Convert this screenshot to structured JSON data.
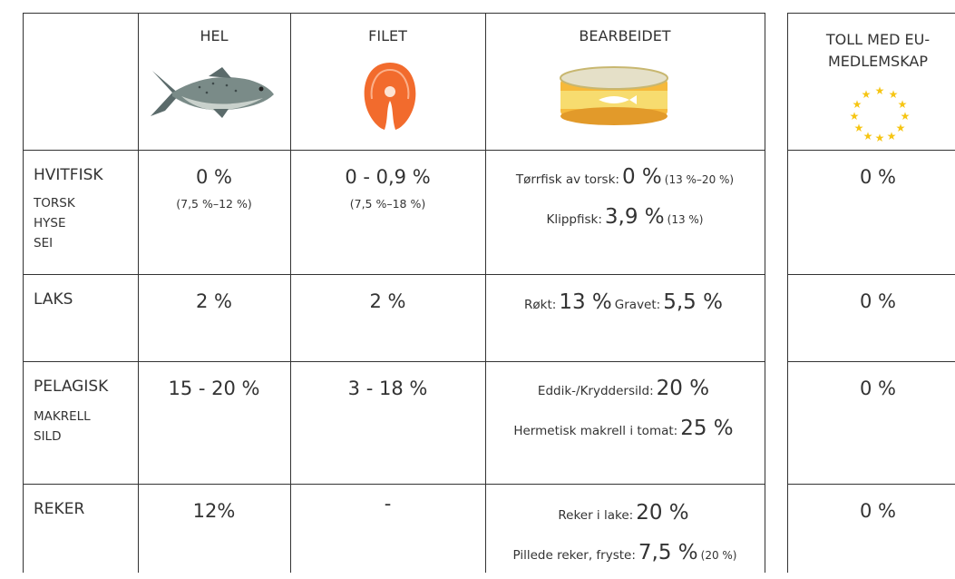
{
  "header": {
    "columns": [
      "HEL",
      "FILET",
      "BEARBEIDET"
    ],
    "eu": [
      "TOLL MED EU-",
      "MEDLEMSKAP"
    ]
  },
  "rows": [
    {
      "name": "HVITFISK",
      "species": [
        "TORSK",
        "HYSE",
        "SEI"
      ],
      "hel": {
        "value": "0 %",
        "note": "(7,5 %–12 %)"
      },
      "filet": {
        "value": "0 - 0,9 %",
        "note": "(7,5 %–18 %)"
      },
      "bearbeidet": [
        [
          {
            "label": "Tørrfisk av torsk:",
            "value": "0 %",
            "note": "(13 %–20 %)"
          }
        ],
        [
          {
            "label": "Klippfisk:",
            "value": "3,9 %",
            "note": "(13 %)"
          }
        ]
      ],
      "eu": "0 %"
    },
    {
      "name": "LAKS",
      "hel": {
        "value": "2 %"
      },
      "filet": {
        "value": "2 %"
      },
      "bearbeidet": [
        [
          {
            "label": "Røkt:",
            "value": "13 %"
          },
          {
            "label": "Gravet:",
            "value": "5,5 %"
          }
        ]
      ],
      "eu": "0 %"
    },
    {
      "name": "PELAGISK",
      "species": [
        "MAKRELL",
        "SILD"
      ],
      "hel": {
        "value": "15 - 20 %"
      },
      "filet": {
        "value": "3 - 18 %"
      },
      "bearbeidet": [
        [
          {
            "label": "Eddik-/Kryddersild:",
            "value": "20 %"
          }
        ],
        [
          {
            "label": "Hermetisk makrell i tomat:",
            "value": "25 %"
          }
        ]
      ],
      "eu": "0 %"
    },
    {
      "name": "REKER",
      "hel": {
        "value": "12%"
      },
      "filet": {
        "value": "-"
      },
      "bearbeidet": [
        [
          {
            "label": "Reker i lake:",
            "value": "20 %"
          }
        ],
        [
          {
            "label": "Pillede reker, fryste:",
            "value": "7,5 %",
            "note": "(20 %)"
          }
        ]
      ],
      "eu": "0 %"
    }
  ]
}
